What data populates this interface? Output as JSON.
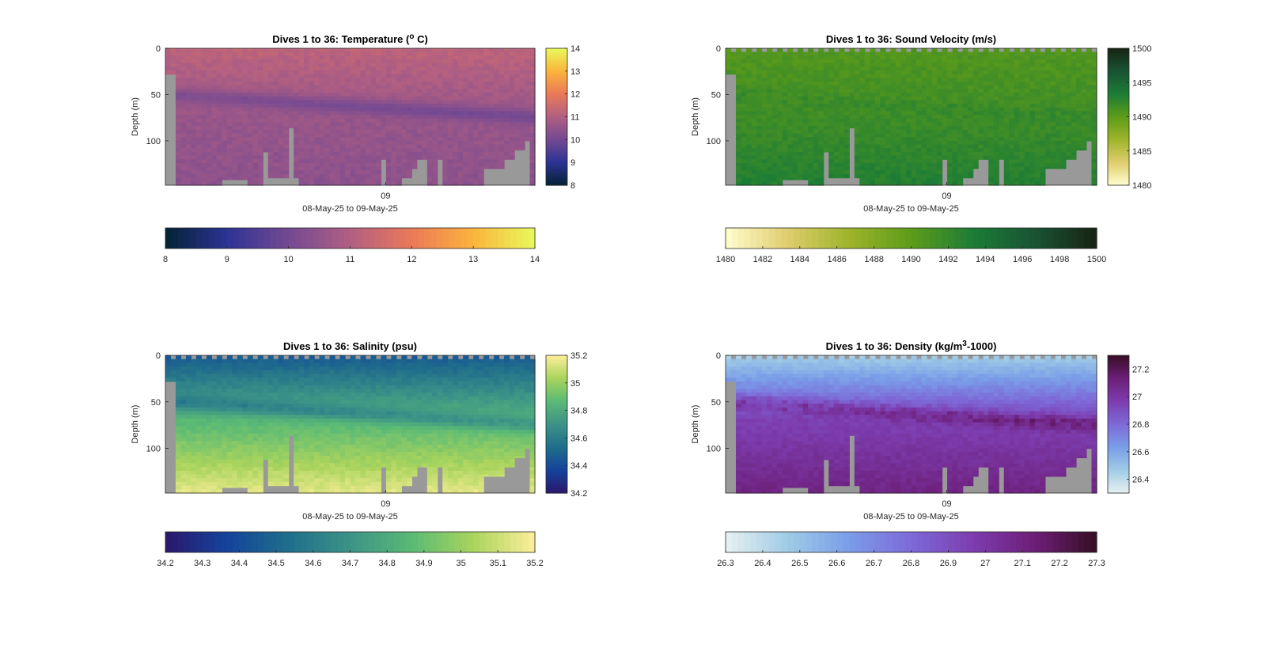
{
  "figure": {
    "background": "#ffffff"
  },
  "chart_data": [
    {
      "type": "heatmap",
      "title": "Dives 1 to 36: Temperature (",
      "title_sup": "o",
      "title_tail": " C)",
      "ylabel": "Depth (m)",
      "xlabel": "08-May-25 to 09-May-25",
      "x_ticks": [
        "09"
      ],
      "y_ticks": [
        "0",
        "50",
        "100"
      ],
      "ylim": [
        0,
        148
      ],
      "y_reversed": true,
      "clim": [
        8,
        14
      ],
      "colormap": "thermal",
      "colorbar_right_ticks": [
        "8",
        "9",
        "10",
        "11",
        "12",
        "13",
        "14"
      ],
      "colorbar_bottom_ticks": [
        "8",
        "9",
        "10",
        "11",
        "12",
        "13",
        "14"
      ],
      "profiles": 72,
      "field": {
        "surface": 11.2,
        "mid": 10.6,
        "deep": 10.4,
        "anomaly_depth": 60,
        "anomaly": -0.6
      },
      "bottom_depths_m": [
        28,
        28,
        148,
        148,
        148,
        148,
        148,
        148,
        148,
        148,
        148,
        142,
        142,
        142,
        142,
        142,
        148,
        148,
        148,
        112,
        140,
        140,
        140,
        140,
        86,
        140,
        148,
        148,
        148,
        148,
        148,
        148,
        148,
        148,
        148,
        148,
        148,
        148,
        148,
        148,
        148,
        148,
        120,
        148,
        148,
        148,
        140,
        140,
        130,
        120,
        120,
        148,
        148,
        120,
        148,
        148,
        148,
        148,
        148,
        148,
        148,
        148,
        130,
        130,
        130,
        130,
        120,
        120,
        110,
        110,
        100,
        148
      ],
      "start_depths_m": [
        0,
        0,
        0,
        0,
        0,
        0,
        0,
        0,
        0,
        0,
        0,
        0,
        0,
        0,
        0,
        0,
        0,
        0,
        0,
        0,
        0,
        0,
        0,
        0,
        0,
        0,
        0,
        0,
        0,
        0,
        0,
        0,
        0,
        0,
        0,
        0,
        0,
        0,
        0,
        0,
        0,
        0,
        0,
        0,
        0,
        0,
        0,
        0,
        0,
        0,
        0,
        0,
        0,
        0,
        0,
        0,
        0,
        0,
        0,
        0,
        0,
        0,
        0,
        0,
        0,
        0,
        0,
        0,
        0,
        0,
        0,
        0
      ],
      "gray_columns": [
        2,
        3
      ],
      "gray_until_m": [
        [
          3,
          62
        ],
        [
          4,
          62
        ]
      ]
    },
    {
      "type": "heatmap",
      "title": "Dives 1 to 36: Sound Velocity (m/s)",
      "ylabel": "Depth (m)",
      "xlabel": "08-May-25 to 09-May-25",
      "x_ticks": [
        "09"
      ],
      "y_ticks": [
        "0",
        "50",
        "100"
      ],
      "ylim": [
        0,
        148
      ],
      "y_reversed": true,
      "clim": [
        1480,
        1500
      ],
      "colormap": "speed",
      "colorbar_right_ticks": [
        "1480",
        "1485",
        "1490",
        "1495",
        "1500"
      ],
      "colorbar_bottom_ticks": [
        "1480",
        "1482",
        "1484",
        "1486",
        "1488",
        "1490",
        "1492",
        "1494",
        "1496",
        "1498",
        "1500"
      ],
      "profiles": 72,
      "field": {
        "surface": 1490.5,
        "mid": 1491.5,
        "deep": 1493.0,
        "anomaly_depth": 60,
        "anomaly": 0.5
      }
    },
    {
      "type": "heatmap",
      "title": "Dives 1 to 36: Salinity (psu)",
      "ylabel": "Depth (m)",
      "xlabel": "08-May-25 to 09-May-25",
      "x_ticks": [
        "09"
      ],
      "y_ticks": [
        "0",
        "50",
        "100"
      ],
      "ylim": [
        0,
        148
      ],
      "y_reversed": true,
      "clim": [
        34.2,
        35.2
      ],
      "colormap": "haline",
      "colorbar_right_ticks": [
        "34.2",
        "34.4",
        "34.6",
        "34.8",
        "35",
        "35.2"
      ],
      "colorbar_bottom_ticks": [
        "34.2",
        "34.3",
        "34.4",
        "34.5",
        "34.6",
        "34.7",
        "34.8",
        "34.9",
        "35",
        "35.1",
        "35.2"
      ],
      "profiles": 72,
      "field": {
        "surface": 34.45,
        "mid": 34.85,
        "deep": 35.15,
        "anomaly_depth": 60,
        "anomaly": -0.15
      }
    },
    {
      "type": "heatmap",
      "title": "Dives 1 to 36: Density (kg/m",
      "title_sup": "3",
      "title_tail": "-1000)",
      "ylabel": "Depth (m)",
      "xlabel": "08-May-25 to 09-May-25",
      "x_ticks": [
        "09"
      ],
      "y_ticks": [
        "0",
        "50",
        "100"
      ],
      "ylim": [
        0,
        148
      ],
      "y_reversed": true,
      "clim": [
        26.3,
        27.3
      ],
      "colormap": "dense",
      "colorbar_right_ticks": [
        "26.4",
        "26.6",
        "26.8",
        "27",
        "27.2"
      ],
      "colorbar_bottom_ticks": [
        "26.3",
        "26.4",
        "26.5",
        "26.6",
        "26.7",
        "26.8",
        "26.9",
        "27",
        "27.1",
        "27.2",
        "27.3"
      ],
      "profiles": 72,
      "field": {
        "surface": 26.45,
        "mid": 26.95,
        "deep": 27.1,
        "anomaly_depth": 60,
        "anomaly": 0.15
      }
    }
  ],
  "palettes": {
    "thermal": [
      "#042333",
      "#2c3395",
      "#744992",
      "#b15f82",
      "#eb7958",
      "#fbb43d",
      "#e8fa5b"
    ],
    "speed": [
      "#fffdcd",
      "#e0cd6e",
      "#9db42a",
      "#5d9c1a",
      "#1c7c36",
      "#195333",
      "#172313"
    ],
    "haline": [
      "#2a186c",
      "#14439c",
      "#206e8b",
      "#3c9387",
      "#5aba75",
      "#a9d45d",
      "#fdef9a"
    ],
    "dense": [
      "#e6f1f1",
      "#a0cbe6",
      "#7a9de8",
      "#7d69d8",
      "#7d3daf",
      "#6c1e77",
      "#360e24"
    ],
    "no_data": "#999999"
  }
}
